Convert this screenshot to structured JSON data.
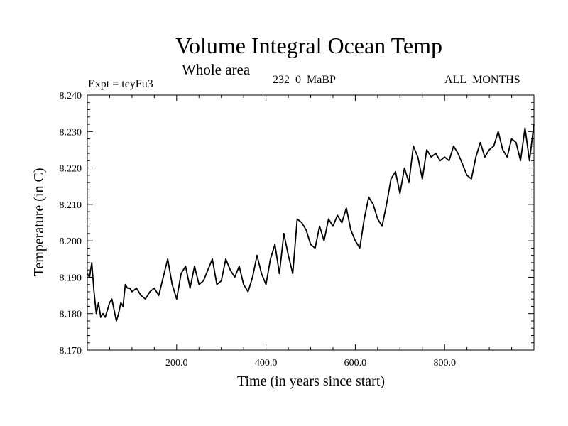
{
  "chart_data": {
    "type": "line",
    "title": "Volume Integral Ocean Temp",
    "subtitle": "Whole area",
    "annotations": {
      "experiment": "Expt = teyFu3",
      "period": "232_0_MaBP",
      "months": "ALL_MONTHS"
    },
    "xlabel": "Time (in years since start)",
    "ylabel": "Temperature (in C)",
    "xlim": [
      0,
      1000
    ],
    "ylim": [
      8.17,
      8.24
    ],
    "x_ticks": [
      200,
      400,
      600,
      800
    ],
    "x_tick_labels": [
      "200.0",
      "400.0",
      "600.0",
      "800.0"
    ],
    "y_ticks": [
      8.17,
      8.18,
      8.19,
      8.2,
      8.21,
      8.22,
      8.23,
      8.24
    ],
    "y_tick_labels": [
      "8.170",
      "8.180",
      "8.190",
      "8.200",
      "8.210",
      "8.220",
      "8.230",
      "8.240"
    ],
    "grid": false,
    "series": [
      {
        "name": "Volume integral ocean temperature",
        "x": [
          0,
          5,
          10,
          15,
          20,
          25,
          30,
          35,
          40,
          45,
          50,
          55,
          60,
          65,
          70,
          75,
          80,
          85,
          90,
          95,
          100,
          110,
          120,
          130,
          140,
          150,
          160,
          170,
          180,
          190,
          200,
          210,
          220,
          230,
          240,
          250,
          260,
          270,
          280,
          290,
          300,
          310,
          320,
          330,
          340,
          350,
          360,
          370,
          380,
          390,
          400,
          410,
          420,
          430,
          440,
          450,
          460,
          470,
          480,
          490,
          500,
          510,
          520,
          530,
          540,
          550,
          560,
          570,
          580,
          590,
          600,
          610,
          620,
          630,
          640,
          650,
          660,
          670,
          680,
          690,
          700,
          710,
          720,
          730,
          740,
          750,
          760,
          770,
          780,
          790,
          800,
          810,
          820,
          830,
          840,
          850,
          860,
          870,
          880,
          890,
          900,
          910,
          920,
          930,
          940,
          950,
          960,
          970,
          980,
          990,
          1000
        ],
        "y": [
          8.191,
          8.19,
          8.194,
          8.186,
          8.18,
          8.183,
          8.179,
          8.18,
          8.179,
          8.181,
          8.183,
          8.184,
          8.181,
          8.178,
          8.18,
          8.183,
          8.182,
          8.188,
          8.187,
          8.187,
          8.186,
          8.187,
          8.185,
          8.184,
          8.186,
          8.187,
          8.185,
          8.19,
          8.195,
          8.188,
          8.184,
          8.191,
          8.193,
          8.187,
          8.193,
          8.188,
          8.189,
          8.192,
          8.195,
          8.188,
          8.189,
          8.195,
          8.192,
          8.19,
          8.193,
          8.188,
          8.186,
          8.19,
          8.196,
          8.191,
          8.188,
          8.195,
          8.199,
          8.191,
          8.202,
          8.196,
          8.191,
          8.206,
          8.205,
          8.203,
          8.199,
          8.198,
          8.204,
          8.2,
          8.206,
          8.204,
          8.207,
          8.205,
          8.209,
          8.203,
          8.2,
          8.198,
          8.206,
          8.212,
          8.21,
          8.206,
          8.204,
          8.21,
          8.217,
          8.219,
          8.213,
          8.22,
          8.216,
          8.226,
          8.223,
          8.217,
          8.225,
          8.223,
          8.224,
          8.222,
          8.223,
          8.222,
          8.226,
          8.224,
          8.221,
          8.218,
          8.217,
          8.223,
          8.227,
          8.223,
          8.225,
          8.226,
          8.23,
          8.225,
          8.223,
          8.228,
          8.227,
          8.222,
          8.231,
          8.222,
          8.232
        ]
      }
    ]
  }
}
